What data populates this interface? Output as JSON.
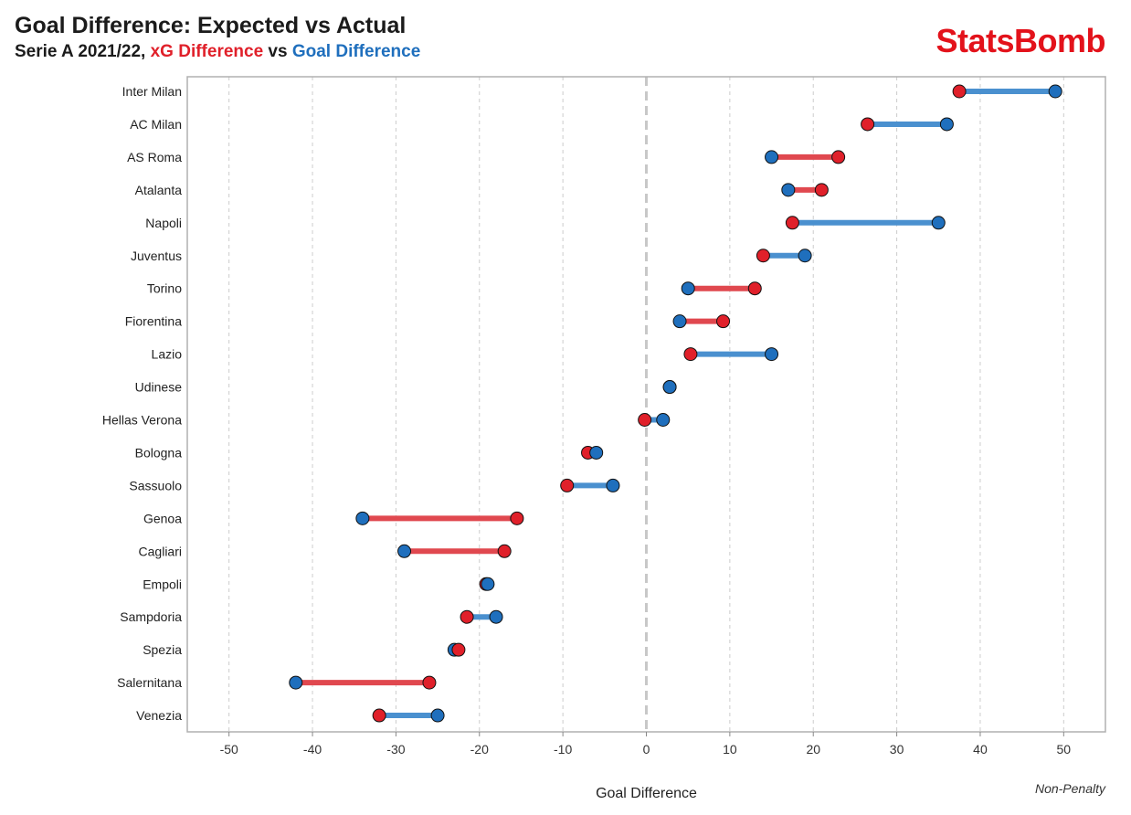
{
  "header": {
    "title": "Goal Difference: Expected vs Actual",
    "subtitle_prefix": "Serie A 2021/22, ",
    "subtitle_xg": "xG Difference",
    "subtitle_mid": " vs ",
    "subtitle_gd": "Goal Difference",
    "logo": "StatsBomb",
    "footnote": "Non-Penalty"
  },
  "colors": {
    "xg": "#e0202a",
    "xg_line": "#e0484f",
    "gd": "#1f6fbd",
    "gd_line": "#4a90cf",
    "logo": "#e3121b",
    "axis_frame": "#b0b0b0",
    "grid": "#cccccc",
    "zero_line": "#c8c8c8"
  },
  "chart_data": {
    "type": "dumbbell",
    "xlabel": "Goal Difference",
    "xlim": [
      -55,
      55
    ],
    "xticks": [
      -50,
      -40,
      -30,
      -20,
      -10,
      0,
      10,
      20,
      30,
      40,
      50
    ],
    "grid": "vertical dashed",
    "series": [
      {
        "name": "xG Difference",
        "key": "xg"
      },
      {
        "name": "Goal Difference",
        "key": "gd"
      }
    ],
    "teams": [
      {
        "team": "Inter Milan",
        "xg": 37.5,
        "gd": 49
      },
      {
        "team": "AC Milan",
        "xg": 26.5,
        "gd": 36
      },
      {
        "team": "AS Roma",
        "xg": 23,
        "gd": 15
      },
      {
        "team": "Atalanta",
        "xg": 21,
        "gd": 17
      },
      {
        "team": "Napoli",
        "xg": 17.5,
        "gd": 35
      },
      {
        "team": "Juventus",
        "xg": 14,
        "gd": 19
      },
      {
        "team": "Torino",
        "xg": 13,
        "gd": 5
      },
      {
        "team": "Fiorentina",
        "xg": 9.2,
        "gd": 4
      },
      {
        "team": "Lazio",
        "xg": 5.3,
        "gd": 15
      },
      {
        "team": "Udinese",
        "xg": 2.8,
        "gd": 2.8
      },
      {
        "team": "Hellas Verona",
        "xg": -0.2,
        "gd": 2
      },
      {
        "team": "Bologna",
        "xg": -7,
        "gd": -6
      },
      {
        "team": "Sassuolo",
        "xg": -9.5,
        "gd": -4
      },
      {
        "team": "Genoa",
        "xg": -15.5,
        "gd": -34
      },
      {
        "team": "Cagliari",
        "xg": -17,
        "gd": -29
      },
      {
        "team": "Empoli",
        "xg": -19.2,
        "gd": -19
      },
      {
        "team": "Sampdoria",
        "xg": -21.5,
        "gd": -18
      },
      {
        "team": "Spezia",
        "xg": -22.5,
        "gd": -23
      },
      {
        "team": "Salernitana",
        "xg": -26,
        "gd": -42
      },
      {
        "team": "Venezia",
        "xg": -32,
        "gd": -25
      }
    ]
  }
}
